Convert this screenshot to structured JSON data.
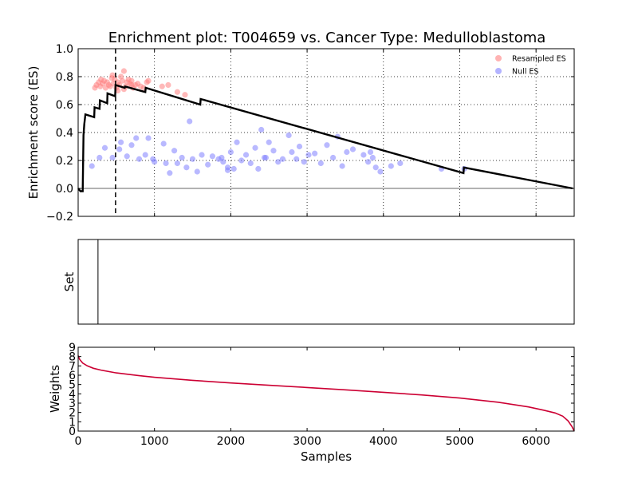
{
  "chart_data": [
    {
      "type": "line",
      "title": "Enrichment plot: T004659 vs. Cancer Type: Medulloblastoma",
      "ylabel": "Enrichment score (ES)",
      "xlim": [
        0,
        6500
      ],
      "ylim": [
        -0.2,
        1.0
      ],
      "yticks": [
        "−0.2",
        "0.0",
        "0.2",
        "0.4",
        "0.6",
        "0.8",
        "1.0"
      ],
      "ytick_values": [
        -0.2,
        0.0,
        0.2,
        0.4,
        0.6,
        0.8,
        1.0
      ],
      "xtick_values": [
        1000,
        2000,
        3000,
        4000,
        5000,
        6000
      ],
      "grid": true,
      "legend_position": "top-right",
      "legend": [
        {
          "label": "Resampled ES",
          "color": "#ff8080"
        },
        {
          "label": "Null ES",
          "color": "#8080ff"
        }
      ],
      "peak_x": 490,
      "es_line": [
        [
          0,
          0.0
        ],
        [
          30,
          -0.02
        ],
        [
          60,
          -0.02
        ],
        [
          70,
          0.38
        ],
        [
          80,
          0.46
        ],
        [
          95,
          0.53
        ],
        [
          210,
          0.51
        ],
        [
          215,
          0.58
        ],
        [
          280,
          0.57
        ],
        [
          285,
          0.63
        ],
        [
          380,
          0.61
        ],
        [
          385,
          0.68
        ],
        [
          485,
          0.66
        ],
        [
          490,
          0.74
        ],
        [
          610,
          0.72
        ],
        [
          615,
          0.73
        ],
        [
          880,
          0.69
        ],
        [
          885,
          0.72
        ],
        [
          1600,
          0.6
        ],
        [
          1605,
          0.64
        ],
        [
          5050,
          0.11
        ],
        [
          5055,
          0.15
        ],
        [
          6480,
          0.0
        ]
      ],
      "series": [
        {
          "name": "Resampled ES",
          "color": "#ff8080",
          "points": [
            [
              220,
              0.72
            ],
            [
              240,
              0.74
            ],
            [
              270,
              0.76
            ],
            [
              290,
              0.73
            ],
            [
              300,
              0.78
            ],
            [
              320,
              0.75
            ],
            [
              340,
              0.77
            ],
            [
              360,
              0.72
            ],
            [
              380,
              0.76
            ],
            [
              400,
              0.74
            ],
            [
              420,
              0.73
            ],
            [
              440,
              0.79
            ],
            [
              460,
              0.75
            ],
            [
              480,
              0.78
            ],
            [
              500,
              0.72
            ],
            [
              520,
              0.76
            ],
            [
              540,
              0.74
            ],
            [
              560,
              0.8
            ],
            [
              580,
              0.77
            ],
            [
              600,
              0.84
            ],
            [
              620,
              0.73
            ],
            [
              640,
              0.76
            ],
            [
              660,
              0.78
            ],
            [
              680,
              0.75
            ],
            [
              700,
              0.77
            ],
            [
              720,
              0.72
            ],
            [
              750,
              0.74
            ],
            [
              780,
              0.75
            ],
            [
              820,
              0.73
            ],
            [
              860,
              0.72
            ],
            [
              920,
              0.77
            ],
            [
              1100,
              0.73
            ],
            [
              1180,
              0.74
            ],
            [
              1300,
              0.69
            ],
            [
              1400,
              0.67
            ],
            [
              450,
              0.81
            ],
            [
              520,
              0.7
            ],
            [
              600,
              0.71
            ],
            [
              700,
              0.74
            ],
            [
              900,
              0.76
            ]
          ]
        },
        {
          "name": "Null ES",
          "color": "#8080ff",
          "points": [
            [
              180,
              0.16
            ],
            [
              280,
              0.22
            ],
            [
              350,
              0.29
            ],
            [
              450,
              0.22
            ],
            [
              540,
              0.28
            ],
            [
              560,
              0.33
            ],
            [
              640,
              0.23
            ],
            [
              700,
              0.31
            ],
            [
              760,
              0.36
            ],
            [
              800,
              0.21
            ],
            [
              880,
              0.24
            ],
            [
              920,
              0.36
            ],
            [
              980,
              0.21
            ],
            [
              1000,
              0.19
            ],
            [
              1120,
              0.32
            ],
            [
              1150,
              0.18
            ],
            [
              1200,
              0.11
            ],
            [
              1260,
              0.27
            ],
            [
              1300,
              0.18
            ],
            [
              1360,
              0.22
            ],
            [
              1420,
              0.15
            ],
            [
              1460,
              0.48
            ],
            [
              1500,
              0.21
            ],
            [
              1560,
              0.12
            ],
            [
              1620,
              0.24
            ],
            [
              1700,
              0.17
            ],
            [
              1760,
              0.23
            ],
            [
              1840,
              0.21
            ],
            [
              1900,
              0.19
            ],
            [
              1960,
              0.15
            ],
            [
              2000,
              0.26
            ],
            [
              2040,
              0.14
            ],
            [
              2080,
              0.33
            ],
            [
              2140,
              0.2
            ],
            [
              2200,
              0.24
            ],
            [
              2260,
              0.18
            ],
            [
              2320,
              0.29
            ],
            [
              2360,
              0.14
            ],
            [
              2400,
              0.42
            ],
            [
              2440,
              0.22
            ],
            [
              2500,
              0.33
            ],
            [
              2560,
              0.27
            ],
            [
              2620,
              0.19
            ],
            [
              2680,
              0.21
            ],
            [
              2760,
              0.38
            ],
            [
              2800,
              0.26
            ],
            [
              2860,
              0.21
            ],
            [
              2900,
              0.3
            ],
            [
              2960,
              0.19
            ],
            [
              3020,
              0.24
            ],
            [
              3100,
              0.25
            ],
            [
              3180,
              0.18
            ],
            [
              3260,
              0.31
            ],
            [
              3340,
              0.22
            ],
            [
              3400,
              0.37
            ],
            [
              3460,
              0.16
            ],
            [
              3520,
              0.26
            ],
            [
              3600,
              0.28
            ],
            [
              3740,
              0.24
            ],
            [
              3800,
              0.19
            ],
            [
              3860,
              0.22
            ],
            [
              3900,
              0.15
            ],
            [
              3960,
              0.12
            ],
            [
              4100,
              0.16
            ],
            [
              4220,
              0.18
            ],
            [
              4760,
              0.14
            ],
            [
              5060,
              0.14
            ],
            [
              3830,
              0.26
            ],
            [
              2460,
              0.22
            ],
            [
              1960,
              0.13
            ],
            [
              1880,
              0.22
            ]
          ]
        }
      ]
    },
    {
      "type": "line",
      "ylabel": "Set",
      "xlim": [
        0,
        6500
      ],
      "hits": [
        260
      ]
    },
    {
      "type": "line",
      "ylabel": "Weights",
      "xlabel": "Samples",
      "xlim": [
        0,
        6500
      ],
      "ylim": [
        0,
        9
      ],
      "yticks": [
        "0",
        "1",
        "2",
        "3",
        "4",
        "5",
        "6",
        "7",
        "8",
        "9"
      ],
      "xticks": [
        "0",
        "1000",
        "2000",
        "3000",
        "4000",
        "5000",
        "6000"
      ],
      "xtick_values": [
        0,
        1000,
        2000,
        3000,
        4000,
        5000,
        6000
      ],
      "line_color": "#cc0033",
      "weights_line": [
        [
          0,
          8.1
        ],
        [
          20,
          7.7
        ],
        [
          60,
          7.3
        ],
        [
          120,
          7.0
        ],
        [
          200,
          6.75
        ],
        [
          300,
          6.55
        ],
        [
          500,
          6.25
        ],
        [
          800,
          5.95
        ],
        [
          1000,
          5.78
        ],
        [
          1500,
          5.45
        ],
        [
          2000,
          5.17
        ],
        [
          2500,
          4.92
        ],
        [
          3000,
          4.68
        ],
        [
          3500,
          4.43
        ],
        [
          4000,
          4.17
        ],
        [
          4500,
          3.88
        ],
        [
          5000,
          3.55
        ],
        [
          5500,
          3.1
        ],
        [
          5900,
          2.6
        ],
        [
          6100,
          2.25
        ],
        [
          6250,
          1.95
        ],
        [
          6350,
          1.6
        ],
        [
          6420,
          1.1
        ],
        [
          6470,
          0.5
        ],
        [
          6500,
          0.0
        ]
      ]
    }
  ]
}
